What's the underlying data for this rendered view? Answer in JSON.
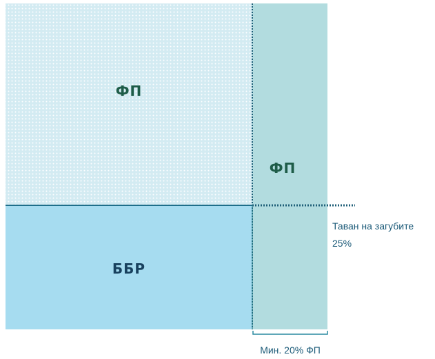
{
  "regions": {
    "top_left": {
      "label": "ФП"
    },
    "right": {
      "label": "ФП"
    },
    "bottom_left": {
      "label": "ББР"
    }
  },
  "loss_cap": {
    "lines": [
      "Таван на загубите",
      "25%"
    ]
  },
  "min_share": {
    "label": "Мин. 20% ФП"
  }
}
